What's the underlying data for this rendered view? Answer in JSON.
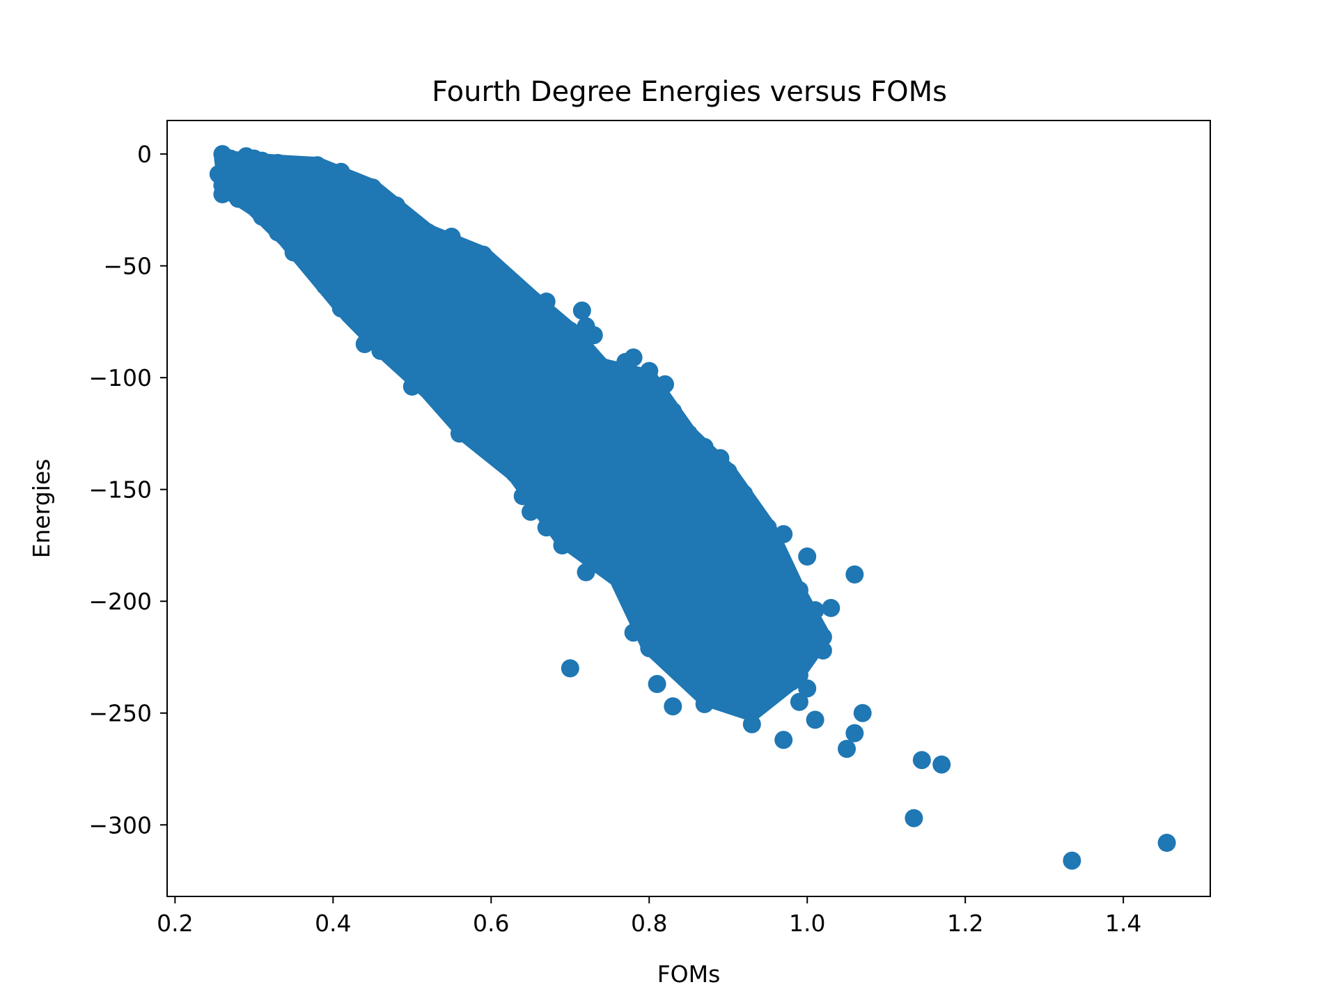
{
  "chart_data": {
    "type": "scatter",
    "title": "Fourth Degree Energies versus FOMs",
    "xlabel": "FOMs",
    "ylabel": "Energies",
    "xlim": [
      0.19,
      1.51
    ],
    "ylim": [
      -332,
      15
    ],
    "xticks": [
      0.2,
      0.4,
      0.6,
      0.8,
      1.0,
      1.2,
      1.4
    ],
    "xtick_labels": [
      "0.2",
      "0.4",
      "0.6",
      "0.8",
      "1.0",
      "1.2",
      "1.4"
    ],
    "yticks": [
      0,
      -50,
      -100,
      -150,
      -200,
      -250,
      -300
    ],
    "ytick_labels": [
      "0",
      "−50",
      "−100",
      "−150",
      "−200",
      "−250",
      "−300"
    ],
    "grid": false,
    "legend": "none",
    "marker_color": "#1f77b4",
    "series": [
      {
        "values_note": "",
        "points": [
          [
            0.26,
            0
          ],
          [
            0.27,
            -2
          ],
          [
            0.29,
            -1
          ],
          [
            0.3,
            -2
          ],
          [
            0.31,
            -3
          ],
          [
            0.33,
            -4
          ],
          [
            0.35,
            -5
          ],
          [
            0.36,
            -6
          ],
          [
            0.38,
            -5
          ],
          [
            0.41,
            -8
          ],
          [
            0.43,
            -14
          ],
          [
            0.45,
            -15
          ],
          [
            0.48,
            -23
          ],
          [
            0.49,
            -28
          ],
          [
            0.52,
            -35
          ],
          [
            0.55,
            -37
          ],
          [
            0.57,
            -43
          ],
          [
            0.59,
            -45
          ],
          [
            0.62,
            -60
          ],
          [
            0.64,
            -64
          ],
          [
            0.67,
            -66
          ],
          [
            0.7,
            -79
          ],
          [
            0.715,
            -70
          ],
          [
            0.72,
            -77
          ],
          [
            0.73,
            -81
          ],
          [
            0.74,
            -95
          ],
          [
            0.77,
            -93
          ],
          [
            0.78,
            -91
          ],
          [
            0.8,
            -97
          ],
          [
            0.82,
            -103
          ],
          [
            0.83,
            -115
          ],
          [
            0.85,
            -125
          ],
          [
            0.87,
            -131
          ],
          [
            0.89,
            -136
          ],
          [
            0.9,
            -142
          ],
          [
            0.92,
            -152
          ],
          [
            0.93,
            -160
          ],
          [
            0.95,
            -167
          ],
          [
            0.97,
            -170
          ],
          [
            0.97,
            -186
          ],
          [
            0.99,
            -195
          ],
          [
            1.0,
            -180
          ],
          [
            1.01,
            -204
          ],
          [
            1.03,
            -203
          ],
          [
            1.02,
            -216
          ],
          [
            1.02,
            -222
          ],
          [
            0.98,
            -222
          ],
          [
            0.98,
            -236
          ],
          [
            0.99,
            -233
          ],
          [
            1.0,
            -239
          ],
          [
            0.99,
            -245
          ],
          [
            1.01,
            -253
          ],
          [
            0.97,
            -262
          ],
          [
            1.05,
            -266
          ],
          [
            1.06,
            -259
          ],
          [
            1.07,
            -250
          ],
          [
            1.06,
            -188
          ],
          [
            0.93,
            -255
          ],
          [
            0.92,
            -247
          ],
          [
            0.94,
            -242
          ],
          [
            0.87,
            -246
          ],
          [
            0.87,
            -240
          ],
          [
            0.83,
            -247
          ],
          [
            0.81,
            -237
          ],
          [
            0.83,
            -225
          ],
          [
            0.8,
            -221
          ],
          [
            0.78,
            -214
          ],
          [
            0.78,
            -199
          ],
          [
            0.76,
            -187
          ],
          [
            0.72,
            -187
          ],
          [
            0.7,
            -230
          ],
          [
            0.69,
            -175
          ],
          [
            0.67,
            -167
          ],
          [
            0.65,
            -160
          ],
          [
            0.64,
            -153
          ],
          [
            0.63,
            -143
          ],
          [
            0.6,
            -130
          ],
          [
            0.58,
            -128
          ],
          [
            0.56,
            -125
          ],
          [
            0.55,
            -114
          ],
          [
            0.53,
            -106
          ],
          [
            0.5,
            -104
          ],
          [
            0.49,
            -95
          ],
          [
            0.46,
            -88
          ],
          [
            0.44,
            -85
          ],
          [
            0.43,
            -75
          ],
          [
            0.41,
            -69
          ],
          [
            0.39,
            -59
          ],
          [
            0.37,
            -50
          ],
          [
            0.35,
            -44
          ],
          [
            0.33,
            -35
          ],
          [
            0.31,
            -28
          ],
          [
            0.3,
            -22
          ],
          [
            0.28,
            -20
          ],
          [
            0.26,
            -18
          ],
          [
            0.255,
            -9
          ],
          [
            0.26,
            -14
          ],
          [
            0.28,
            -10
          ],
          [
            1.135,
            -297
          ],
          [
            1.145,
            -271
          ],
          [
            1.17,
            -273
          ],
          [
            1.335,
            -316
          ],
          [
            1.455,
            -308
          ]
        ]
      }
    ]
  }
}
